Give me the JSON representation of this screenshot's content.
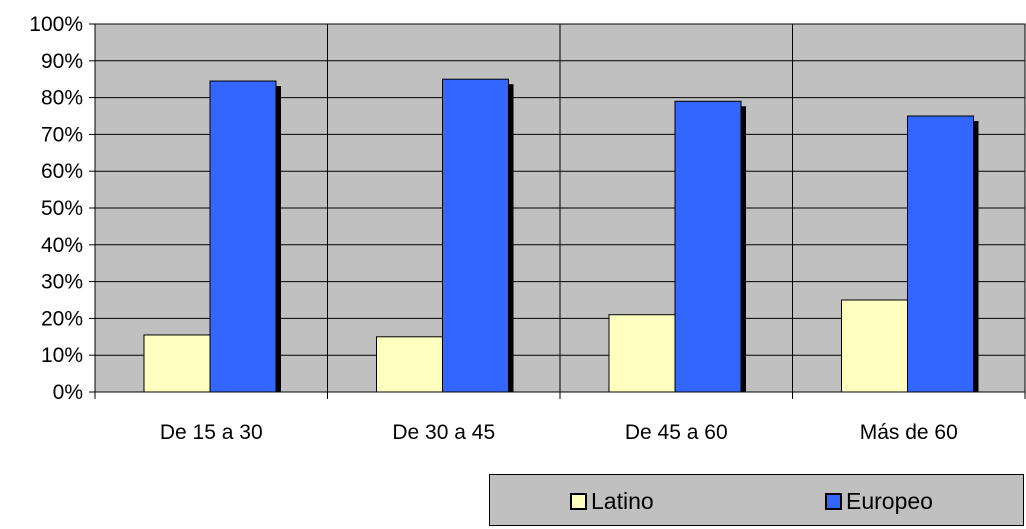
{
  "chart_data": {
    "type": "bar",
    "categories": [
      "De 15 a 30",
      "De 30 a 45",
      "De 45 a 60",
      "Más de 60"
    ],
    "series": [
      {
        "name": "Latino",
        "values": [
          15.5,
          15,
          21,
          25
        ],
        "color": "#ffffc0"
      },
      {
        "name": "Europeo",
        "values": [
          84.5,
          85,
          79,
          75
        ],
        "color": "#3366ff"
      }
    ],
    "yticks": [
      "0%",
      "10%",
      "20%",
      "30%",
      "40%",
      "50%",
      "60%",
      "70%",
      "80%",
      "90%",
      "100%"
    ],
    "ylim": [
      0,
      100
    ],
    "grid": true,
    "plot_background": "#c0c0c0",
    "legend_position": "bottom-right"
  }
}
